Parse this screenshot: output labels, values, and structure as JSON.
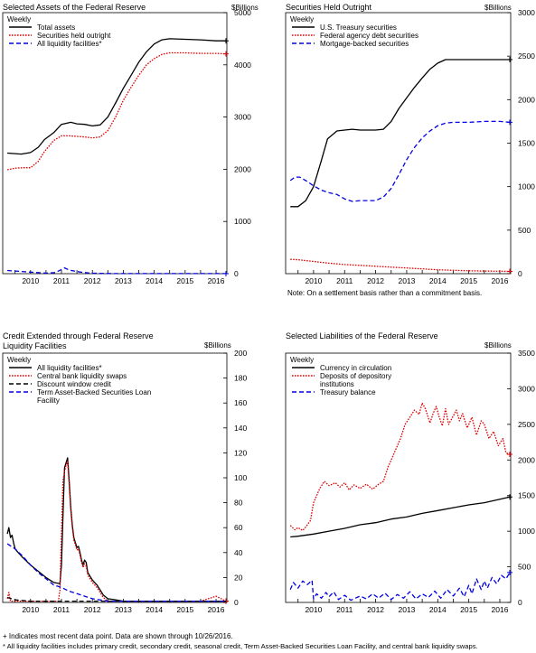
{
  "unit_label": "$Billions",
  "legend_header": "Weekly",
  "footnotes": {
    "recent": "+ Indicates most recent data point. Data are shown through 10/26/2016.",
    "liquidity": "* All liquidity facilities includes primary credit, secondary credit, seasonal credit, Term Asset-Backed Securities Loan Facility, and central bank liquidity swaps."
  },
  "chart_data": [
    {
      "type": "line",
      "title": "Selected Assets of the Federal Reserve",
      "ylabel": "$Billions",
      "x_ticks": [
        "2010",
        "2011",
        "2012",
        "2013",
        "2014",
        "2015",
        "2016"
      ],
      "xlim": [
        2009.6,
        2016.85
      ],
      "ylim": [
        0,
        5000
      ],
      "y_ticks": [
        0,
        1000,
        2000,
        3000,
        4000,
        5000
      ],
      "legend": "top-left",
      "series": [
        {
          "name": "Total assets",
          "color": "#000000",
          "dash": "solid",
          "x": [
            2009.75,
            2010.0,
            2010.2,
            2010.5,
            2010.75,
            2010.95,
            2011.25,
            2011.5,
            2011.8,
            2012.0,
            2012.25,
            2012.5,
            2012.75,
            2013.0,
            2013.25,
            2013.5,
            2013.75,
            2014.0,
            2014.25,
            2014.5,
            2014.75,
            2015.0,
            2015.5,
            2016.0,
            2016.5,
            2016.82
          ],
          "y": [
            2310,
            2300,
            2290,
            2320,
            2420,
            2570,
            2700,
            2860,
            2900,
            2870,
            2860,
            2830,
            2850,
            3000,
            3270,
            3550,
            3800,
            4050,
            4250,
            4400,
            4480,
            4500,
            4490,
            4480,
            4460,
            4460
          ]
        },
        {
          "name": "Securities held outright",
          "color": "#e00000",
          "dash": "dotted",
          "x": [
            2009.75,
            2010.0,
            2010.25,
            2010.5,
            2010.75,
            2010.95,
            2011.25,
            2011.5,
            2011.75,
            2012.0,
            2012.25,
            2012.5,
            2012.75,
            2013.0,
            2013.25,
            2013.5,
            2013.75,
            2014.0,
            2014.25,
            2014.5,
            2014.75,
            2015.0,
            2015.5,
            2016.0,
            2016.5,
            2016.82
          ],
          "y": [
            1990,
            2020,
            2030,
            2030,
            2150,
            2340,
            2550,
            2640,
            2640,
            2630,
            2620,
            2600,
            2620,
            2740,
            3000,
            3320,
            3570,
            3800,
            4000,
            4120,
            4200,
            4230,
            4230,
            4220,
            4220,
            4210
          ]
        },
        {
          "name": "All liquidity facilities*",
          "color": "#0000e0",
          "dash": "dashed",
          "x": [
            2009.75,
            2010.0,
            2010.5,
            2011.0,
            2011.3,
            2011.5,
            2011.6,
            2011.75,
            2012.0,
            2012.25,
            2012.5,
            2013.0,
            2013.5,
            2014.0,
            2015.0,
            2016.0,
            2016.82
          ],
          "y": [
            60,
            50,
            30,
            10,
            20,
            80,
            110,
            70,
            40,
            20,
            8,
            3,
            2,
            1,
            1,
            1,
            1
          ]
        }
      ]
    },
    {
      "type": "line",
      "title": "Securities Held Outright",
      "ylabel": "$Billions",
      "note": "Note: On a settlement basis rather than a commitment basis.",
      "x_ticks": [
        "2010",
        "2011",
        "2012",
        "2013",
        "2014",
        "2015",
        "2016"
      ],
      "xlim": [
        2009.6,
        2016.85
      ],
      "ylim": [
        0,
        3000
      ],
      "y_ticks": [
        0,
        500,
        1000,
        1500,
        2000,
        2500,
        3000
      ],
      "legend": "top-left",
      "series": [
        {
          "name": "U.S. Treasury securities",
          "color": "#000000",
          "dash": "solid",
          "x": [
            2009.75,
            2010.0,
            2010.25,
            2010.5,
            2010.75,
            2010.95,
            2011.25,
            2011.5,
            2011.75,
            2012.0,
            2012.25,
            2012.5,
            2012.75,
            2013.0,
            2013.25,
            2013.5,
            2013.75,
            2014.0,
            2014.25,
            2014.5,
            2014.75,
            2015.0,
            2015.5,
            2016.0,
            2016.5,
            2016.82
          ],
          "y": [
            770,
            770,
            840,
            1000,
            1300,
            1550,
            1640,
            1650,
            1660,
            1650,
            1650,
            1650,
            1660,
            1750,
            1900,
            2020,
            2140,
            2250,
            2350,
            2420,
            2460,
            2460,
            2460,
            2460,
            2460,
            2460
          ]
        },
        {
          "name": "Federal agency debt securities",
          "color": "#e00000",
          "dash": "dotted",
          "x": [
            2009.75,
            2010.0,
            2010.5,
            2011.0,
            2011.5,
            2012.0,
            2012.5,
            2013.0,
            2013.5,
            2014.0,
            2014.5,
            2015.0,
            2015.5,
            2016.0,
            2016.5,
            2016.82
          ],
          "y": [
            165,
            160,
            140,
            120,
            105,
            95,
            85,
            75,
            65,
            55,
            45,
            38,
            33,
            30,
            28,
            26
          ]
        },
        {
          "name": "Mortgage-backed securities",
          "color": "#0000e0",
          "dash": "dashed",
          "x": [
            2009.75,
            2009.9,
            2010.05,
            2010.25,
            2010.5,
            2010.75,
            2011.0,
            2011.25,
            2011.5,
            2011.75,
            2012.0,
            2012.25,
            2012.5,
            2012.75,
            2013.0,
            2013.25,
            2013.5,
            2013.75,
            2014.0,
            2014.25,
            2014.5,
            2014.75,
            2015.0,
            2015.5,
            2016.0,
            2016.5,
            2016.82
          ],
          "y": [
            1070,
            1110,
            1110,
            1070,
            1010,
            960,
            930,
            910,
            860,
            830,
            840,
            840,
            840,
            880,
            980,
            1140,
            1310,
            1450,
            1560,
            1640,
            1700,
            1730,
            1740,
            1740,
            1750,
            1750,
            1740
          ]
        }
      ]
    },
    {
      "type": "line",
      "title": "Credit Extended through Federal Reserve\nLiquidity Facilities",
      "ylabel": "$Billions",
      "x_ticks": [
        "2010",
        "2011",
        "2012",
        "2013",
        "2014",
        "2015",
        "2016"
      ],
      "xlim": [
        2009.6,
        2016.85
      ],
      "ylim": [
        0,
        200
      ],
      "y_ticks": [
        0,
        20,
        40,
        60,
        80,
        100,
        120,
        140,
        160,
        180,
        200
      ],
      "legend": "top-left",
      "series": [
        {
          "name": "All liquidity facilities*",
          "color": "#000000",
          "dash": "solid",
          "x": [
            2009.75,
            2009.8,
            2009.85,
            2009.9,
            2009.95,
            2010.0,
            2010.1,
            2010.25,
            2010.5,
            2010.75,
            2011.0,
            2011.25,
            2011.45,
            2011.5,
            2011.55,
            2011.6,
            2011.65,
            2011.7,
            2011.75,
            2011.8,
            2011.85,
            2011.9,
            2011.95,
            2012.0,
            2012.05,
            2012.1,
            2012.15,
            2012.2,
            2012.25,
            2012.3,
            2012.35,
            2012.5,
            2012.65,
            2012.75,
            2012.85,
            2013.0,
            2013.25,
            2013.5,
            2014.0,
            2014.5,
            2015.0,
            2015.5,
            2016.0,
            2016.5,
            2016.82
          ],
          "y": [
            55,
            60,
            52,
            54,
            48,
            43,
            40,
            36,
            30,
            25,
            20,
            16,
            15,
            30,
            70,
            108,
            112,
            116,
            98,
            76,
            62,
            52,
            48,
            44,
            45,
            40,
            34,
            30,
            34,
            32,
            24,
            18,
            14,
            10,
            6,
            3,
            2,
            1,
            1,
            1,
            1,
            1,
            1,
            1,
            1
          ]
        },
        {
          "name": "Central bank liquidity swaps",
          "color": "#e00000",
          "dash": "dotted",
          "x": [
            2009.75,
            2009.8,
            2009.85,
            2009.9,
            2010.0,
            2010.25,
            2010.5,
            2011.0,
            2011.4,
            2011.45,
            2011.5,
            2011.55,
            2011.6,
            2011.65,
            2011.7,
            2011.75,
            2011.8,
            2011.85,
            2011.9,
            2011.95,
            2012.0,
            2012.05,
            2012.1,
            2012.15,
            2012.2,
            2012.25,
            2012.3,
            2012.35,
            2012.5,
            2012.65,
            2012.75,
            2012.85,
            2013.0,
            2013.5,
            2014.0,
            2015.0,
            2016.0,
            2016.5,
            2016.82
          ],
          "y": [
            3,
            8,
            1,
            1,
            1,
            1,
            1,
            1,
            1,
            10,
            55,
            98,
            105,
            110,
            113,
            95,
            74,
            60,
            50,
            46,
            42,
            43,
            38,
            32,
            28,
            31,
            29,
            22,
            16,
            12,
            8,
            4,
            1,
            1,
            1,
            1,
            1,
            5,
            1
          ]
        },
        {
          "name": "Discount window credit",
          "color": "#000000",
          "dash": "dashed",
          "x": [
            2009.75,
            2010.0,
            2010.5,
            2011.0,
            2012.0,
            2013.0,
            2014.0,
            2015.0,
            2016.0,
            2016.82
          ],
          "y": [
            4,
            2,
            1,
            1,
            1,
            1,
            1,
            1,
            1,
            1
          ]
        },
        {
          "name": "Term Asset-Backed Securities Loan Facility",
          "color": "#0000e0",
          "dash": "dashed",
          "x": [
            2009.75,
            2010.0,
            2010.25,
            2010.5,
            2010.75,
            2011.0,
            2011.25,
            2011.5,
            2011.75,
            2012.0,
            2012.25,
            2012.5,
            2013.0,
            2013.5,
            2014.0,
            2015.0,
            2016.0,
            2016.82
          ],
          "y": [
            47,
            43,
            37,
            30,
            24,
            19,
            14,
            12,
            9,
            7,
            5,
            3,
            1,
            1,
            1,
            1,
            1,
            1
          ]
        }
      ]
    },
    {
      "type": "line",
      "title": "Selected Liabilities of the Federal Reserve",
      "ylabel": "$Billions",
      "x_ticks": [
        "2010",
        "2011",
        "2012",
        "2013",
        "2014",
        "2015",
        "2016"
      ],
      "xlim": [
        2009.6,
        2016.85
      ],
      "ylim": [
        0,
        3500
      ],
      "y_ticks": [
        0,
        500,
        1000,
        1500,
        2000,
        2500,
        3000,
        3500
      ],
      "legend": "top-left",
      "series": [
        {
          "name": "Currency in circulation",
          "color": "#000000",
          "dash": "solid",
          "x": [
            2009.75,
            2010.0,
            2010.5,
            2011.0,
            2011.5,
            2012.0,
            2012.5,
            2013.0,
            2013.5,
            2014.0,
            2014.5,
            2015.0,
            2015.5,
            2016.0,
            2016.5,
            2016.82
          ],
          "y": [
            920,
            930,
            960,
            1000,
            1040,
            1090,
            1120,
            1170,
            1200,
            1250,
            1290,
            1330,
            1370,
            1400,
            1450,
            1480
          ]
        },
        {
          "name": "Deposits of depository institutions",
          "color": "#e00000",
          "dash": "dotted",
          "x": [
            2009.75,
            2009.9,
            2010.0,
            2010.15,
            2010.25,
            2010.4,
            2010.5,
            2010.7,
            2010.85,
            2011.0,
            2011.2,
            2011.35,
            2011.5,
            2011.65,
            2011.8,
            2012.0,
            2012.2,
            2012.4,
            2012.6,
            2012.75,
            2012.9,
            2013.0,
            2013.15,
            2013.3,
            2013.45,
            2013.6,
            2013.75,
            2013.9,
            2014.0,
            2014.1,
            2014.25,
            2014.35,
            2014.45,
            2014.55,
            2014.65,
            2014.75,
            2014.85,
            2015.0,
            2015.1,
            2015.2,
            2015.3,
            2015.45,
            2015.6,
            2015.75,
            2015.9,
            2016.0,
            2016.15,
            2016.3,
            2016.45,
            2016.6,
            2016.7,
            2016.82
          ],
          "y": [
            1080,
            1020,
            1050,
            1010,
            1060,
            1150,
            1400,
            1600,
            1700,
            1640,
            1680,
            1620,
            1680,
            1580,
            1650,
            1600,
            1660,
            1590,
            1660,
            1700,
            1900,
            2000,
            2150,
            2300,
            2500,
            2600,
            2700,
            2640,
            2800,
            2720,
            2520,
            2650,
            2750,
            2600,
            2480,
            2720,
            2500,
            2620,
            2700,
            2550,
            2650,
            2450,
            2600,
            2350,
            2550,
            2500,
            2300,
            2400,
            2200,
            2300,
            2100,
            2080
          ]
        },
        {
          "name": "Treasury balance",
          "color": "#0000e0",
          "dash": "dashed",
          "x": [
            2009.75,
            2009.85,
            2010.0,
            2010.15,
            2010.3,
            2010.45,
            2010.5,
            2010.6,
            2010.75,
            2010.9,
            2011.0,
            2011.15,
            2011.3,
            2011.5,
            2011.7,
            2012.0,
            2012.2,
            2012.4,
            2012.6,
            2012.8,
            2013.0,
            2013.2,
            2013.4,
            2013.6,
            2013.8,
            2014.0,
            2014.2,
            2014.4,
            2014.6,
            2014.8,
            2015.0,
            2015.2,
            2015.35,
            2015.5,
            2015.6,
            2015.75,
            2015.9,
            2016.0,
            2016.1,
            2016.25,
            2016.4,
            2016.55,
            2016.7,
            2016.82
          ],
          "y": [
            180,
            280,
            200,
            300,
            250,
            310,
            50,
            120,
            60,
            140,
            80,
            150,
            40,
            100,
            30,
            90,
            50,
            120,
            60,
            130,
            40,
            110,
            60,
            150,
            50,
            120,
            70,
            160,
            60,
            180,
            90,
            200,
            80,
            240,
            120,
            330,
            180,
            300,
            200,
            350,
            260,
            380,
            330,
            420
          ]
        }
      ]
    }
  ]
}
